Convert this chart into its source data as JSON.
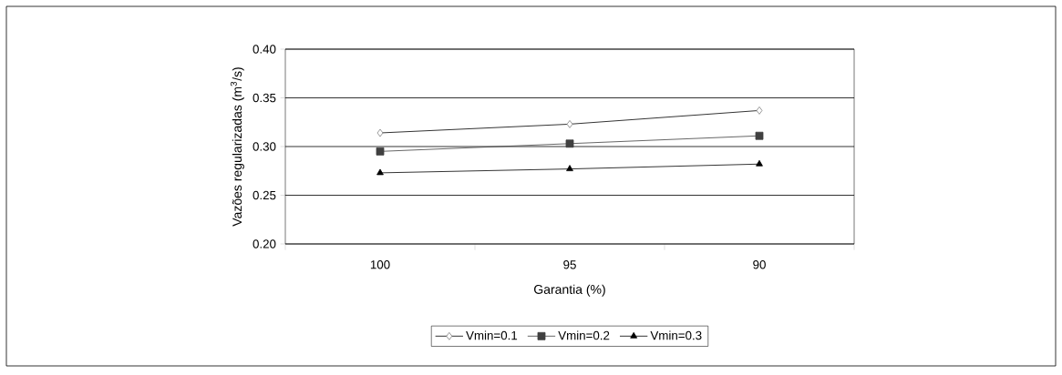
{
  "chart_data": {
    "type": "line",
    "xlabel": "Garantia (%)",
    "ylabel": "Vazões regularizadas (m$^{3}$/s)",
    "categories": [
      "100",
      "95",
      "90"
    ],
    "series": [
      {
        "name": "Vmin=0.1",
        "color": "#000000",
        "marker": "diamond",
        "values": [
          0.314,
          0.323,
          0.337
        ]
      },
      {
        "name": "Vmin=0.2",
        "color": "#404040",
        "marker": "square",
        "values": [
          0.295,
          0.303,
          0.311
        ]
      },
      {
        "name": "Vmin=0.3",
        "color": "#000000",
        "marker": "triangle",
        "values": [
          0.273,
          0.277,
          0.282
        ]
      }
    ],
    "ylim": [
      0.2,
      0.4
    ],
    "yticks": [
      {
        "value": 0.2,
        "label": "0.20"
      },
      {
        "value": 0.25,
        "label": "0.25"
      },
      {
        "value": 0.3,
        "label": "0.30"
      },
      {
        "value": 0.35,
        "label": "0.35"
      },
      {
        "value": 0.4,
        "label": "0.40"
      }
    ],
    "grid": "y",
    "legend": "bottom",
    "line_style": "solid"
  }
}
